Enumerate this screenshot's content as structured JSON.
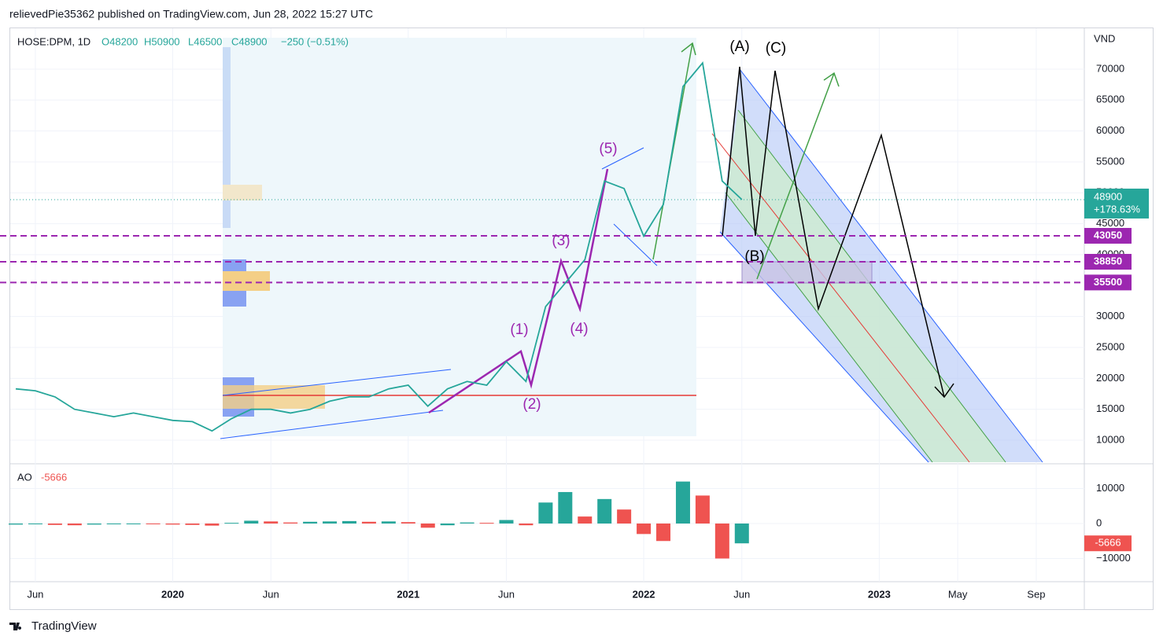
{
  "header": {
    "publisher": "relievedPie35362 published on TradingView.com, Jun 28, 2022 15:27 UTC",
    "symbol": "HOSE:DPM, 1D",
    "ohlc": [
      "O48200",
      "H50900",
      "L46500",
      "C48900",
      "−250 (−0.51%)"
    ]
  },
  "footer": {
    "brand": "TradingView"
  },
  "chart_data": [
    {
      "type": "line",
      "unit": "VND",
      "categories": [
        null,
        "Jun",
        null,
        null,
        null,
        null,
        null,
        null,
        "2020",
        null,
        null,
        null,
        null,
        "Jun",
        null,
        null,
        null,
        null,
        null,
        null,
        "2021",
        null,
        null,
        null,
        null,
        "Jun",
        null,
        null,
        null,
        null,
        null,
        null,
        "2022",
        null,
        null,
        null,
        null,
        "Jun",
        null,
        null,
        null,
        null,
        null,
        null,
        "2023",
        null,
        null,
        null,
        "May",
        null,
        null,
        null,
        "Sep",
        null,
        null
      ],
      "values": [
        18300,
        18000,
        17000,
        15000,
        14400,
        13800,
        14400,
        13800,
        13200,
        13000,
        11500,
        13500,
        15000,
        15000,
        14400,
        15000,
        16300,
        17000,
        17000,
        18300,
        18900,
        15500,
        18300,
        19500,
        18900,
        22700,
        19500,
        31600,
        35400,
        39200,
        51900,
        50700,
        43000,
        48100,
        67200,
        71000,
        51900,
        48900,
        null,
        null,
        null,
        null,
        null,
        null,
        null,
        null,
        null,
        null,
        null,
        null,
        null,
        null,
        null,
        null,
        null
      ],
      "color": "#26a69a",
      "ylim": [
        6440,
        76730
      ],
      "yticks": [
        10000,
        15000,
        20000,
        25000,
        30000,
        40000,
        45000,
        50000,
        55000,
        60000,
        65000,
        70000
      ],
      "grid": true,
      "last_price": 48900,
      "last_change": "+178.63%",
      "levels": [
        43050,
        38850,
        35500
      ],
      "annotations": [
        "(A)",
        "(C)",
        "(B)",
        "(1)",
        "(2)",
        "(3)",
        "(4)",
        "(5)"
      ]
    },
    {
      "type": "bar",
      "name": "AO",
      "values": [
        -300,
        -200,
        -400,
        -500,
        -300,
        -200,
        -100,
        -200,
        -300,
        -400,
        -600,
        200,
        800,
        600,
        300,
        500,
        600,
        700,
        500,
        600,
        400,
        -1200,
        -500,
        300,
        200,
        1000,
        -500,
        6000,
        9000,
        2000,
        7000,
        4000,
        -3000,
        -5000,
        12000,
        8000,
        -10000,
        -5666,
        null,
        null,
        null,
        null,
        null,
        null,
        null,
        null,
        null,
        null,
        null,
        null,
        null,
        null,
        null,
        null,
        null
      ],
      "colors": [
        "#26a69a",
        "#ef5350"
      ],
      "ylim": [
        -16630,
        16630
      ],
      "yticks": [
        10000,
        0,
        {
          "value": -10000,
          "label": "−10000"
        }
      ]
    }
  ]
}
